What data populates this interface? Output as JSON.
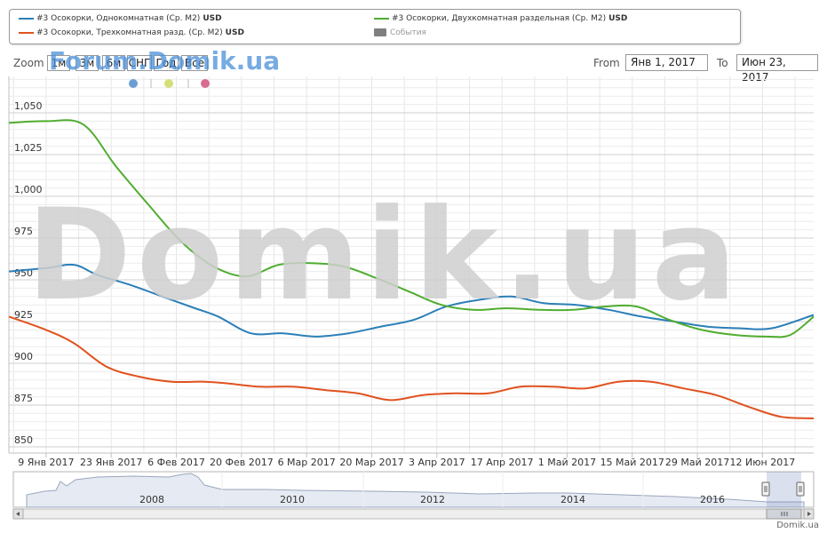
{
  "legend": {
    "items": [
      {
        "label": "#3 Осокорки, Однокомнатная (Ср. М2)",
        "unit": "USD",
        "color": "#2b7fb8"
      },
      {
        "label": "#3 Осокорки, Трехкомнатная разд. (Ср. М2)",
        "unit": "USD",
        "color": "#e0521f"
      },
      {
        "label": "#3 Осокорки, Двухкомнатная раздельная (Ср. М2)",
        "unit": "USD",
        "color": "#4fad2f"
      }
    ],
    "events_label": "События"
  },
  "range_selector": {
    "zoom_label": "Zoom",
    "buttons": [
      "1м",
      "3м",
      "6м",
      "СНГ",
      "Год",
      "Все"
    ],
    "from_label": "From",
    "from_value": "Янв 1, 2017",
    "to_label": "To",
    "to_value": "Июн 23, 2017"
  },
  "watermarks": {
    "small": "Forum.Domik.ua",
    "large": "Domik.ua"
  },
  "footer": "Domik.ua",
  "navigator": {
    "years": [
      "2008",
      "2010",
      "2012",
      "2014",
      "2016"
    ]
  },
  "chart_data": {
    "type": "line",
    "x_ticks": [
      "9 Янв 2017",
      "23 Янв 2017",
      "6 Фев 2017",
      "20 Фев 2017",
      "6 Мар 2017",
      "20 Мар 2017",
      "3 Апр 2017",
      "17 Апр 2017",
      "1 Май 2017",
      "15 Май 2017",
      "29 Май 2017",
      "12 Июн 2017"
    ],
    "x_range": [
      "2017-01-01",
      "2017-06-23"
    ],
    "y_ticks": [
      850,
      875,
      900,
      925,
      950,
      975,
      1000,
      1025,
      1050
    ],
    "ylim": [
      850,
      1070
    ],
    "grid": true,
    "legend_position": "top",
    "series": [
      {
        "name": "#3 Осокорки, Однокомнатная (Ср. М2)",
        "color": "#2b7fb8",
        "x": [
          "2017-01-01",
          "2017-01-09",
          "2017-01-15",
          "2017-01-20",
          "2017-01-27",
          "2017-02-03",
          "2017-02-10",
          "2017-02-15",
          "2017-02-22",
          "2017-03-01",
          "2017-03-08",
          "2017-03-15",
          "2017-03-22",
          "2017-03-29",
          "2017-04-05",
          "2017-04-12",
          "2017-04-19",
          "2017-04-26",
          "2017-05-03",
          "2017-05-10",
          "2017-05-17",
          "2017-05-24",
          "2017-05-31",
          "2017-06-07",
          "2017-06-14",
          "2017-06-23"
        ],
        "y": [
          955,
          957,
          959,
          953,
          947,
          940,
          933,
          928,
          918,
          918,
          916,
          918,
          922,
          926,
          934,
          938,
          940,
          936,
          935,
          932,
          928,
          925,
          922,
          921,
          921,
          929
        ]
      },
      {
        "name": "#3 Осокорки, Трехкомнатная разд. (Ср. М2)",
        "color": "#e0521f",
        "x": [
          "2017-01-01",
          "2017-01-09",
          "2017-01-15",
          "2017-01-22",
          "2017-01-29",
          "2017-02-05",
          "2017-02-12",
          "2017-02-17",
          "2017-02-24",
          "2017-03-03",
          "2017-03-10",
          "2017-03-17",
          "2017-03-24",
          "2017-03-31",
          "2017-04-07",
          "2017-04-14",
          "2017-04-21",
          "2017-04-28",
          "2017-05-05",
          "2017-05-12",
          "2017-05-19",
          "2017-05-26",
          "2017-06-02",
          "2017-06-09",
          "2017-06-16",
          "2017-06-23"
        ],
        "y": [
          928,
          920,
          912,
          898,
          892,
          889,
          889,
          888,
          886,
          886,
          884,
          882,
          878,
          881,
          882,
          882,
          886,
          886,
          885,
          889,
          889,
          885,
          881,
          874,
          868,
          867
        ]
      },
      {
        "name": "#3 Осокорки, Двухкомнатная раздельная (Ср. М2)",
        "color": "#4fad2f",
        "x": [
          "2017-01-01",
          "2017-01-09",
          "2017-01-17",
          "2017-01-24",
          "2017-01-31",
          "2017-02-07",
          "2017-02-14",
          "2017-02-21",
          "2017-02-28",
          "2017-03-07",
          "2017-03-14",
          "2017-03-21",
          "2017-03-28",
          "2017-04-04",
          "2017-04-11",
          "2017-04-18",
          "2017-04-25",
          "2017-05-02",
          "2017-05-09",
          "2017-05-16",
          "2017-05-23",
          "2017-05-30",
          "2017-06-06",
          "2017-06-13",
          "2017-06-18",
          "2017-06-23"
        ],
        "y": [
          1044,
          1045,
          1043,
          1018,
          995,
          973,
          958,
          952,
          959,
          960,
          958,
          951,
          943,
          935,
          932,
          933,
          932,
          932,
          934,
          934,
          926,
          920,
          917,
          916,
          917,
          928
        ]
      }
    ]
  }
}
